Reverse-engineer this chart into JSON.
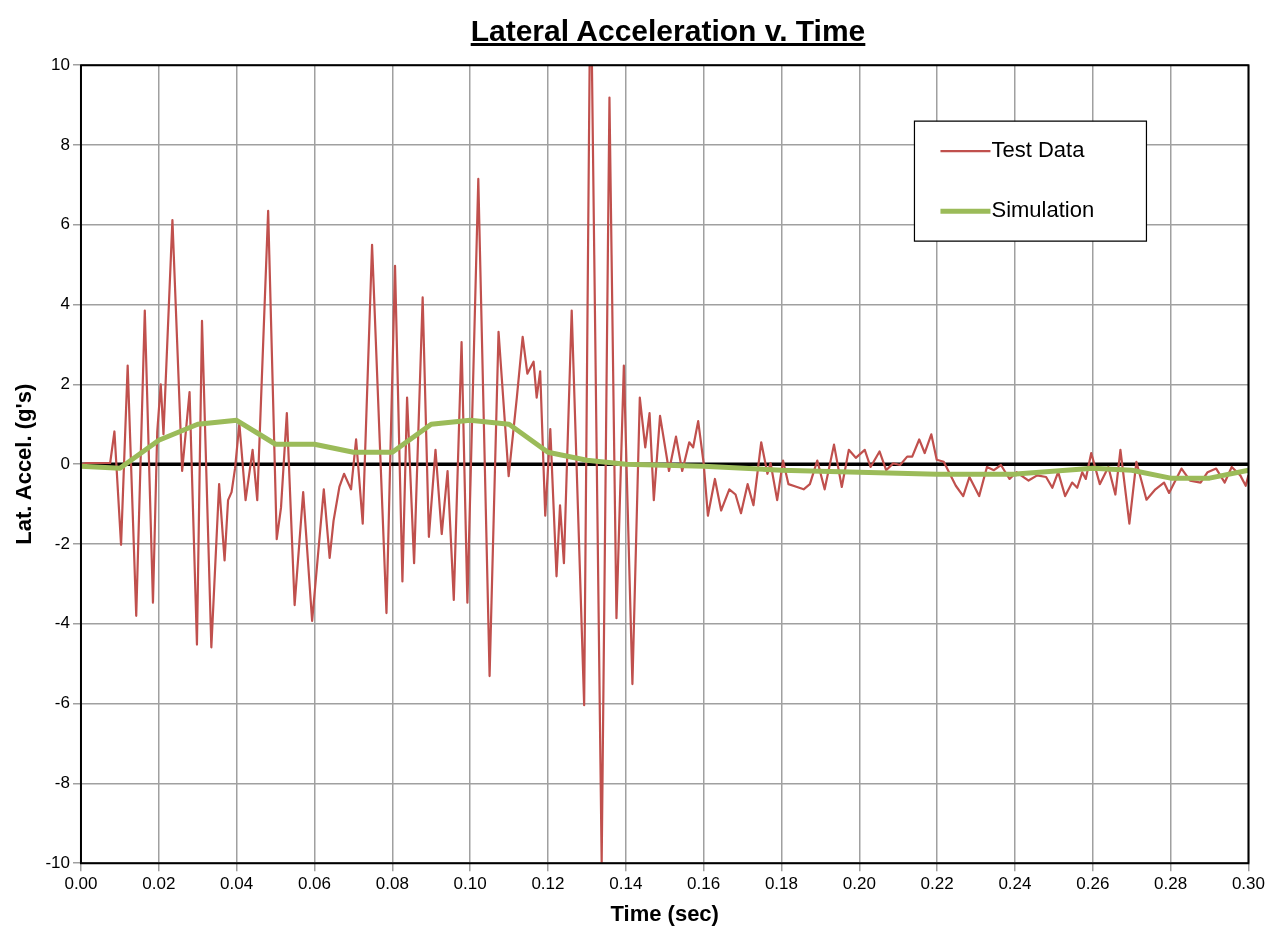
{
  "chart_data": {
    "type": "line",
    "title": "Lateral Acceleration v. Time",
    "xlabel": "Time (sec)",
    "ylabel": "Lat. Accel. (g's)",
    "xlim": [
      0,
      0.3
    ],
    "ylim": [
      -10,
      10
    ],
    "xticks": [
      {
        "value": 0,
        "label": "0.00"
      },
      {
        "value": 0.02,
        "label": "0.02"
      },
      {
        "value": 0.04,
        "label": "0.04"
      },
      {
        "value": 0.06,
        "label": "0.06"
      },
      {
        "value": 0.08,
        "label": "0.08"
      },
      {
        "value": 0.1,
        "label": "0.10"
      },
      {
        "value": 0.12,
        "label": "0.12"
      },
      {
        "value": 0.14,
        "label": "0.14"
      },
      {
        "value": 0.16,
        "label": "0.16"
      },
      {
        "value": 0.18,
        "label": "0.18"
      },
      {
        "value": 0.2,
        "label": "0.20"
      },
      {
        "value": 0.22,
        "label": "0.22"
      },
      {
        "value": 0.24,
        "label": "0.24"
      },
      {
        "value": 0.26,
        "label": "0.26"
      },
      {
        "value": 0.28,
        "label": "0.28"
      },
      {
        "value": 0.3,
        "label": "0.30"
      }
    ],
    "yticks": [
      -10,
      -8,
      -6,
      -4,
      -2,
      0,
      2,
      4,
      6,
      8,
      10
    ],
    "grid": true,
    "legend": "top right",
    "marker": "none",
    "line_style": "solid",
    "ref_lines": [
      {
        "axis": "y",
        "value": 0,
        "color": "#000000"
      }
    ],
    "series": [
      {
        "name": "Test Data",
        "color": "#c0504d",
        "x": [
          0,
          0.0014,
          0.0075,
          0.0086,
          0.0103,
          0.012,
          0.0142,
          0.0164,
          0.0185,
          0.0196,
          0.0205,
          0.0212,
          0.0235,
          0.026,
          0.0279,
          0.0298,
          0.0311,
          0.0335,
          0.0355,
          0.0369,
          0.0378,
          0.0387,
          0.0396,
          0.0407,
          0.0423,
          0.0441,
          0.0453,
          0.0481,
          0.0503,
          0.0514,
          0.0529,
          0.0549,
          0.0571,
          0.0594,
          0.0624,
          0.0639,
          0.0649,
          0.0664,
          0.0676,
          0.0694,
          0.0707,
          0.0724,
          0.0748,
          0.0785,
          0.0807,
          0.0826,
          0.0838,
          0.0856,
          0.0878,
          0.0894,
          0.0911,
          0.0927,
          0.0942,
          0.0958,
          0.0978,
          0.0993,
          0.1021,
          0.105,
          0.1073,
          0.1099,
          0.112,
          0.1135,
          0.1147,
          0.1163,
          0.1171,
          0.118,
          0.1193,
          0.1206,
          0.1222,
          0.1231,
          0.1241,
          0.1261,
          0.1293,
          0.1307,
          0.1313,
          0.1338,
          0.1358,
          0.1376,
          0.1395,
          0.1417,
          0.1436,
          0.145,
          0.1461,
          0.1472,
          0.1488,
          0.1511,
          0.1529,
          0.1545,
          0.1563,
          0.1573,
          0.1586,
          0.16,
          0.1611,
          0.1629,
          0.1645,
          0.1666,
          0.1682,
          0.1696,
          0.1713,
          0.1728,
          0.1748,
          0.1764,
          0.1772,
          0.1789,
          0.1804,
          0.1818,
          0.184,
          0.1857,
          0.1873,
          0.1892,
          0.1911,
          0.1935,
          0.1955,
          0.1973,
          0.1991,
          0.2014,
          0.2029,
          0.2052,
          0.2069,
          0.2087,
          0.2105,
          0.2123,
          0.2136,
          0.2154,
          0.2168,
          0.2185,
          0.2199,
          0.2217,
          0.2248,
          0.2267,
          0.2283,
          0.2308,
          0.2328,
          0.2346,
          0.2364,
          0.2386,
          0.2404,
          0.2435,
          0.2457,
          0.248,
          0.2496,
          0.2511,
          0.2529,
          0.2547,
          0.256,
          0.2573,
          0.2582,
          0.2596,
          0.2618,
          0.264,
          0.2658,
          0.2671,
          0.2694,
          0.2712,
          0.2738,
          0.2761,
          0.2783,
          0.2796,
          0.2828,
          0.285,
          0.2877,
          0.2895,
          0.2917,
          0.2939,
          0.2957,
          0.2979,
          0.2993,
          0.3
        ],
        "values": [
          0,
          0.03,
          0.03,
          0.82,
          -2.02,
          2.47,
          -3.8,
          3.85,
          -3.47,
          0.82,
          2,
          0.75,
          6.12,
          -0.17,
          1.81,
          -4.52,
          3.59,
          -4.59,
          -0.5,
          -2.41,
          -0.9,
          -0.7,
          -0.1,
          1.02,
          -0.9,
          0.36,
          -0.9,
          6.35,
          -1.88,
          -1.09,
          1.28,
          -3.53,
          -0.7,
          -3.93,
          -0.63,
          -2.35,
          -1.42,
          -0.57,
          -0.24,
          -0.63,
          0.62,
          -1.49,
          5.5,
          -3.73,
          4.97,
          -2.94,
          1.67,
          -2.48,
          4.18,
          -1.82,
          0.36,
          -1.75,
          -0.17,
          -3.4,
          3.06,
          -3.47,
          7.15,
          -5.31,
          3.32,
          -0.3,
          1.67,
          3.19,
          2.27,
          2.57,
          1.67,
          2.33,
          -1.29,
          0.88,
          -2.81,
          -1.03,
          -2.48,
          3.85,
          -6.04,
          10,
          10,
          -10,
          9.19,
          -3.86,
          2.47,
          -5.51,
          1.67,
          0.42,
          1.28,
          -0.9,
          1.21,
          -0.17,
          0.69,
          -0.17,
          0.55,
          0.42,
          1.08,
          0.03,
          -1.29,
          -0.37,
          -1.16,
          -0.63,
          -0.76,
          -1.23,
          -0.5,
          -1.03,
          0.55,
          -0.24,
          0.03,
          -0.9,
          0.09,
          -0.5,
          -0.57,
          -0.63,
          -0.5,
          0.09,
          -0.63,
          0.49,
          -0.57,
          0.36,
          0.16,
          0.36,
          -0.07,
          0.32,
          -0.15,
          0.02,
          -0.02,
          0.19,
          0.19,
          0.62,
          0.28,
          0.75,
          0.11,
          0.06,
          -0.54,
          -0.8,
          -0.32,
          -0.8,
          -0.07,
          -0.15,
          -0.02,
          -0.37,
          -0.2,
          -0.41,
          -0.28,
          -0.32,
          -0.59,
          -0.2,
          -0.8,
          -0.46,
          -0.59,
          -0.2,
          -0.37,
          0.28,
          -0.5,
          -0.07,
          -0.76,
          0.36,
          -1.49,
          0.06,
          -0.89,
          -0.63,
          -0.46,
          -0.72,
          -0.11,
          -0.41,
          -0.46,
          -0.2,
          -0.11,
          -0.46,
          -0.07,
          -0.28,
          -0.54,
          -0.28
        ]
      },
      {
        "name": "Simulation",
        "color": "#9bbb59",
        "x": [
          0,
          0.01,
          0.02,
          0.03,
          0.04,
          0.05,
          0.06,
          0.07,
          0.08,
          0.09,
          0.1,
          0.11,
          0.12,
          0.13,
          0.14,
          0.16,
          0.18,
          0.2,
          0.22,
          0.24,
          0.26,
          0.27,
          0.28,
          0.29,
          0.3
        ],
        "values": [
          -0.05,
          -0.1,
          0.6,
          1,
          1.1,
          0.5,
          0.5,
          0.3,
          0.3,
          1,
          1.1,
          1,
          0.3,
          0.1,
          0,
          -0.05,
          -0.15,
          -0.2,
          -0.25,
          -0.25,
          -0.1,
          -0.15,
          -0.35,
          -0.35,
          -0.15
        ]
      }
    ]
  }
}
